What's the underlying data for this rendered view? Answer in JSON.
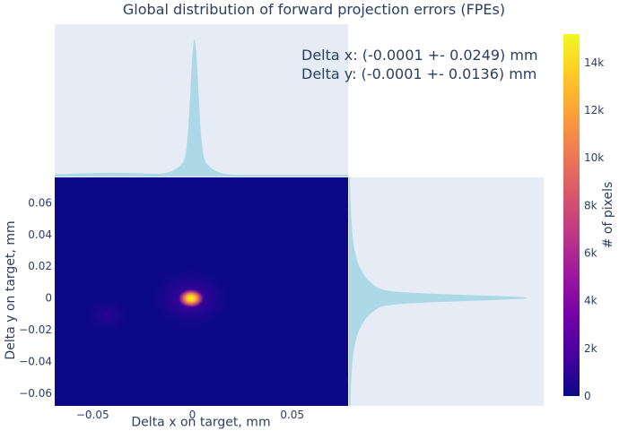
{
  "chart_data": {
    "type": "heatmap",
    "title": "Global distribution of forward projection errors (FPEs)",
    "xlabel": "Delta x on target, mm",
    "ylabel": "Delta y on target, mm",
    "xlim": [
      -0.069,
      0.078
    ],
    "ylim": [
      -0.068,
      0.076
    ],
    "x_ticks": [
      {
        "value": -0.05,
        "label": "−0.05"
      },
      {
        "value": 0,
        "label": "0"
      },
      {
        "value": 0.05,
        "label": "0.05"
      }
    ],
    "y_ticks": [
      {
        "value": 0.06,
        "label": "0.06"
      },
      {
        "value": 0.04,
        "label": "0.04"
      },
      {
        "value": 0.02,
        "label": "0.02"
      },
      {
        "value": 0,
        "label": "0"
      },
      {
        "value": -0.02,
        "label": "−0.02"
      },
      {
        "value": -0.04,
        "label": "−0.04"
      },
      {
        "value": -0.06,
        "label": "−0.06"
      }
    ],
    "annotation": [
      "Delta x: (-0.0001 +- 0.0249) mm",
      "Delta y: (-0.0001 +- 0.0136) mm"
    ],
    "stats": {
      "x_mean": -0.0001,
      "x_std": 0.0249,
      "y_mean": -0.0001,
      "y_std": 0.0136
    },
    "peak": {
      "x": 0.001,
      "y": 0.0,
      "value": 15000
    },
    "colorbar": {
      "title": "# of pixels",
      "range": [
        0,
        15200
      ],
      "ticks": [
        {
          "value": 0,
          "label": "0"
        },
        {
          "value": 2000,
          "label": "2k"
        },
        {
          "value": 4000,
          "label": "4k"
        },
        {
          "value": 6000,
          "label": "6k"
        },
        {
          "value": 8000,
          "label": "8k"
        },
        {
          "value": 10000,
          "label": "10k"
        },
        {
          "value": 12000,
          "label": "12k"
        },
        {
          "value": 14000,
          "label": "14k"
        }
      ],
      "colorscale": [
        "#0d0887",
        "#46039f",
        "#7201a8",
        "#9c179e",
        "#bd3786",
        "#d8576b",
        "#ed7953",
        "#fb9f3a",
        "#fdca26",
        "#f0f921"
      ]
    },
    "marginals": {
      "type": "histogram",
      "color": "#add8e6"
    }
  },
  "colors": {
    "plot_bg": "#e5ecf6",
    "heatmap_bg": "#0d0887",
    "histogram_fill": "#add8e6",
    "text": "#2a3f5f"
  }
}
